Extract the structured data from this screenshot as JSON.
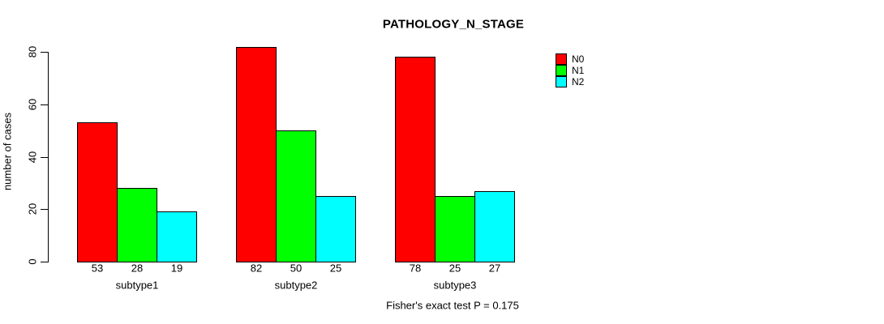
{
  "chart_data": {
    "type": "bar",
    "title": "PATHOLOGY_N_STAGE",
    "ylabel": "number of cases",
    "xlabel": "",
    "categories": [
      "subtype1",
      "subtype2",
      "subtype3"
    ],
    "series": [
      {
        "name": "N0",
        "color": "#ff0000",
        "values": [
          53,
          82,
          78
        ]
      },
      {
        "name": "N1",
        "color": "#00ff00",
        "values": [
          28,
          50,
          25
        ]
      },
      {
        "name": "N2",
        "color": "#00ffff",
        "values": [
          19,
          25,
          27
        ]
      }
    ],
    "bar_value_labels": [
      [
        53,
        28,
        19
      ],
      [
        82,
        50,
        25
      ],
      [
        78,
        25,
        27
      ]
    ],
    "yticks": [
      0,
      20,
      40,
      60,
      80
    ],
    "ylim": [
      0,
      82
    ],
    "grid": false,
    "legend_position": "top-right",
    "annotation": "Fisher's exact test P = 0.175"
  },
  "colors": {
    "background": "#ffffff",
    "axis": "#000000",
    "bar_border": "#000000",
    "text": "#000000"
  }
}
